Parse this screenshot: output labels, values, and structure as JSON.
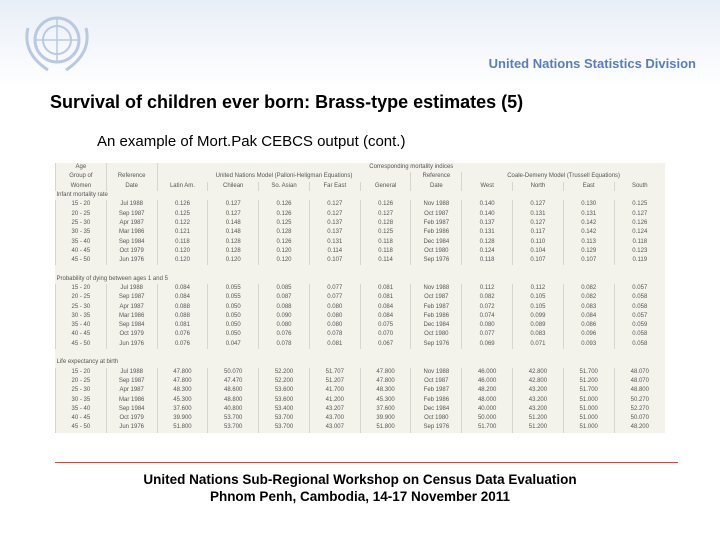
{
  "header": {
    "org": "United Nations Statistics Division"
  },
  "title": "Survival of children ever born: Brass-type estimates (5)",
  "subtitle": "An example of Mort.Pak CEBCS output (cont.)",
  "table": {
    "head": {
      "age": "Age",
      "corr": "Corresponding mortality indices",
      "group": "Group of",
      "ref": "Reference",
      "un": "United Nations Model (Palloni-Heligman Equations)",
      "ref2": "Reference",
      "cd": "Coale-Demeny Model (Trussell Equations)",
      "cols": [
        "Women",
        "Date",
        "Latin Am.",
        "Chilean",
        "So. Asian",
        "Far East",
        "General",
        "Date",
        "West",
        "North",
        "East",
        "South"
      ]
    },
    "sections": [
      {
        "label": "Infant mortality rate",
        "rows": [
          [
            "15 - 20",
            "Jul 1988",
            "0.126",
            "0.127",
            "0.126",
            "0.127",
            "0.126",
            "Nov 1988",
            "0.140",
            "0.127",
            "0.130",
            "0.125"
          ],
          [
            "20 - 25",
            "Sep 1987",
            "0.125",
            "0.127",
            "0.126",
            "0.127",
            "0.127",
            "Oct 1987",
            "0.140",
            "0.131",
            "0.131",
            "0.127"
          ],
          [
            "25 - 30",
            "Apr 1987",
            "0.122",
            "0.148",
            "0.125",
            "0.137",
            "0.128",
            "Feb 1987",
            "0.137",
            "0.127",
            "0.142",
            "0.126"
          ],
          [
            "30 - 35",
            "Mar 1986",
            "0.121",
            "0.148",
            "0.128",
            "0.137",
            "0.125",
            "Feb 1986",
            "0.131",
            "0.117",
            "0.142",
            "0.124"
          ],
          [
            "35 - 40",
            "Sep 1984",
            "0.118",
            "0.128",
            "0.126",
            "0.131",
            "0.118",
            "Dec 1984",
            "0.128",
            "0.110",
            "0.113",
            "0.118"
          ],
          [
            "40 - 45",
            "Oct 1979",
            "0.120",
            "0.128",
            "0.120",
            "0.114",
            "0.118",
            "Oct 1980",
            "0.124",
            "0.104",
            "0.129",
            "0.123"
          ],
          [
            "45 - 50",
            "Jun 1976",
            "0.120",
            "0.120",
            "0.120",
            "0.107",
            "0.114",
            "Sep 1976",
            "0.118",
            "0.107",
            "0.107",
            "0.119"
          ]
        ]
      },
      {
        "label": "Probability of dying between ages 1 and 5",
        "rows": [
          [
            "15 - 20",
            "Jul 1988",
            "0.084",
            "0.055",
            "0.085",
            "0.077",
            "0.081",
            "Nov 1988",
            "0.112",
            "0.112",
            "0.082",
            "0.057"
          ],
          [
            "20 - 25",
            "Sep 1987",
            "0.084",
            "0.055",
            "0.087",
            "0.077",
            "0.081",
            "Oct 1987",
            "0.082",
            "0.105",
            "0.082",
            "0.058"
          ],
          [
            "25 - 30",
            "Apr 1987",
            "0.088",
            "0.050",
            "0.088",
            "0.080",
            "0.084",
            "Feb 1987",
            "0.072",
            "0.105",
            "0.083",
            "0.058"
          ],
          [
            "30 - 35",
            "Mar 1986",
            "0.088",
            "0.050",
            "0.090",
            "0.080",
            "0.084",
            "Feb 1986",
            "0.074",
            "0.099",
            "0.084",
            "0.057"
          ],
          [
            "35 - 40",
            "Sep 1984",
            "0.081",
            "0.050",
            "0.080",
            "0.080",
            "0.075",
            "Dec 1984",
            "0.080",
            "0.089",
            "0.086",
            "0.059"
          ],
          [
            "40 - 45",
            "Oct 1979",
            "0.076",
            "0.050",
            "0.076",
            "0.078",
            "0.070",
            "Oct 1980",
            "0.077",
            "0.083",
            "0.096",
            "0.058"
          ],
          [
            "45 - 50",
            "Jun 1976",
            "0.076",
            "0.047",
            "0.078",
            "0.081",
            "0.067",
            "Sep 1976",
            "0.069",
            "0.071",
            "0.093",
            "0.058"
          ]
        ]
      },
      {
        "label": "Life expectancy at birth",
        "rows": [
          [
            "15 - 20",
            "Jul 1988",
            "47.800",
            "50.070",
            "52.200",
            "51.707",
            "47.800",
            "Nov 1988",
            "46.000",
            "42.800",
            "51.700",
            "48.070"
          ],
          [
            "20 - 25",
            "Sep 1987",
            "47.800",
            "47.470",
            "52.200",
            "51.207",
            "47.800",
            "Oct 1987",
            "46.000",
            "42.800",
            "51.200",
            "48.070"
          ],
          [
            "25 - 30",
            "Apr 1987",
            "48.300",
            "48.600",
            "53.600",
            "41.700",
            "48.300",
            "Feb 1987",
            "48.200",
            "43.200",
            "51.700",
            "48.800"
          ],
          [
            "30 - 35",
            "Mar 1986",
            "45.300",
            "48.800",
            "53.600",
            "41.200",
            "45.300",
            "Feb 1986",
            "48.000",
            "43.200",
            "51.000",
            "50.270"
          ],
          [
            "35 - 40",
            "Sep 1984",
            "37.600",
            "40.800",
            "53.400",
            "43.207",
            "37.600",
            "Dec 1984",
            "40.000",
            "43.200",
            "51.000",
            "52.270"
          ],
          [
            "40 - 45",
            "Oct 1979",
            "39.900",
            "53.700",
            "53.700",
            "43.700",
            "39.900",
            "Oct 1980",
            "50.000",
            "51.200",
            "51.000",
            "50.070"
          ],
          [
            "45 - 50",
            "Jun 1976",
            "51.800",
            "53.700",
            "53.700",
            "43.007",
            "51.800",
            "Sep 1976",
            "51.700",
            "51.200",
            "51.000",
            "48.200"
          ]
        ]
      }
    ]
  },
  "footer": {
    "line1": "United Nations Sub-Regional Workshop on Census Data Evaluation",
    "line2": "Phnom Penh, Cambodia, 14-17 November 2011"
  }
}
